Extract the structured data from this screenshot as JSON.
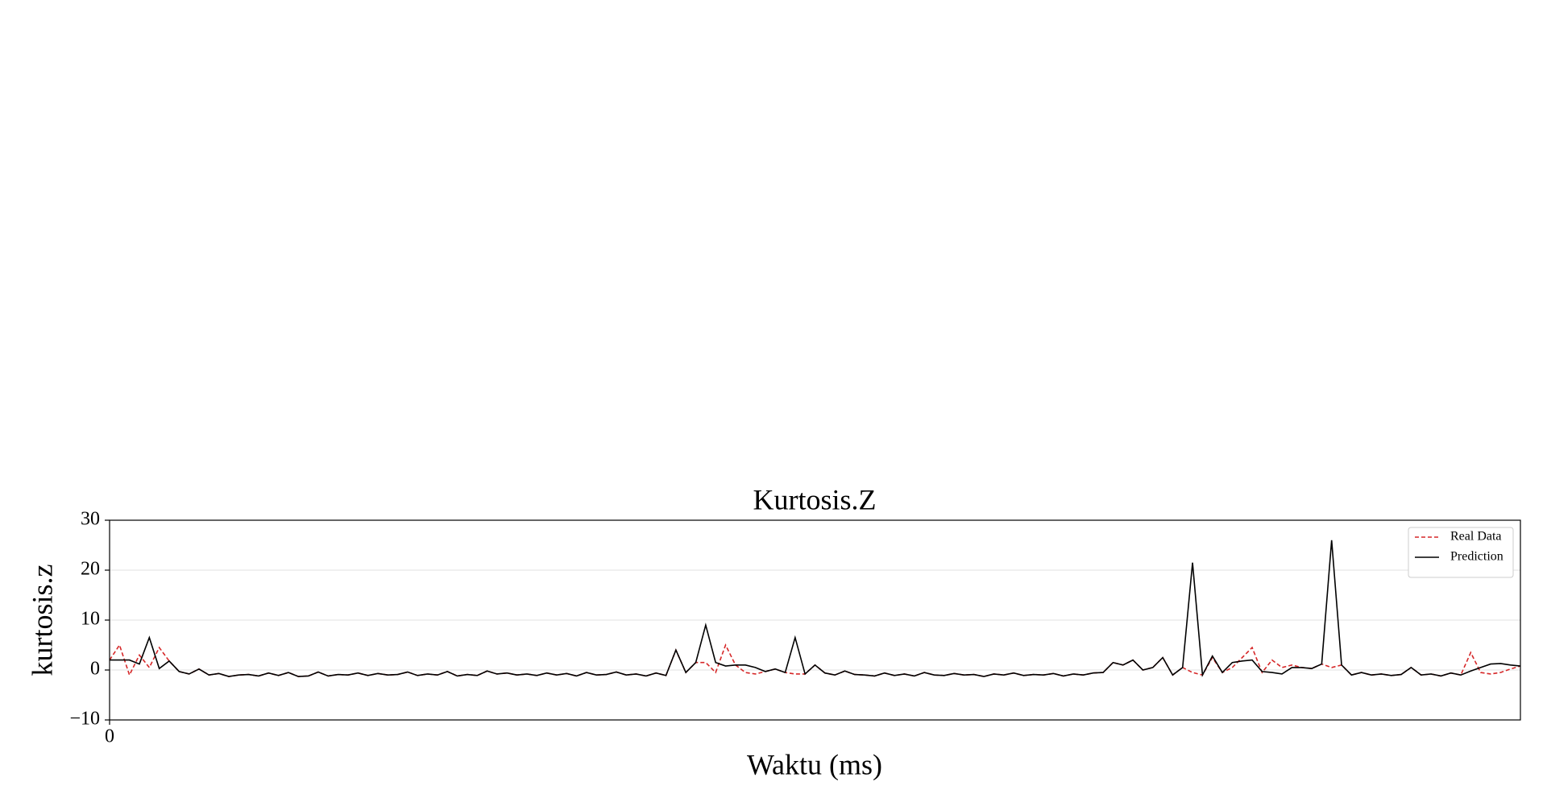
{
  "chart_data": {
    "type": "line",
    "title": "Kurtosis.Z",
    "xlabel": "Waktu (ms)",
    "ylabel": "kurtosis.z",
    "xlim": [
      0,
      142
    ],
    "xticks": [
      0
    ],
    "ylim": [
      -10,
      30
    ],
    "yticks": [
      {
        "value": -10,
        "label": "−10"
      },
      0,
      10,
      20,
      30
    ],
    "grid": true,
    "legend": "upper right",
    "series": [
      {
        "name": "Real Data",
        "color": "#d62728",
        "dashed": true,
        "values": [
          2,
          5,
          -1,
          3,
          0.5,
          4.5,
          1.8,
          -0.3,
          -0.8,
          0.2,
          -1,
          -0.7,
          -1.3,
          -1,
          -0.9,
          -1.2,
          -0.6,
          -1.1,
          -0.5,
          -1.3,
          -1.2,
          -0.4,
          -1.2,
          -0.9,
          -1,
          -0.6,
          -1.1,
          -0.7,
          -1,
          -0.9,
          -0.4,
          -1.1,
          -0.8,
          -1,
          -0.3,
          -1.2,
          -0.9,
          -1.1,
          -0.2,
          -0.8,
          -0.6,
          -1,
          -0.8,
          -1.1,
          -0.6,
          -1,
          -0.7,
          -1.2,
          -0.5,
          -1,
          -0.9,
          -0.4,
          -1,
          -0.8,
          -1.2,
          -0.6,
          -1.1,
          4,
          -0.5,
          1.5,
          1.5,
          -0.5,
          5,
          1,
          -0.5,
          -0.8,
          -0.3,
          0.2,
          -0.5,
          -0.8,
          -0.8,
          1,
          -0.6,
          -1,
          -0.2,
          -0.9,
          -1,
          -1.2,
          -0.6,
          -1.1,
          -0.8,
          -1.2,
          -0.5,
          -1,
          -1.1,
          -0.7,
          -1,
          -0.9,
          -1.3,
          -0.8,
          -1,
          -0.6,
          -1.1,
          -0.9,
          -1,
          -0.7,
          -1.2,
          -0.8,
          -1,
          -0.6,
          -0.5,
          1.5,
          1,
          2,
          0,
          0.5,
          2.5,
          -1,
          0.5,
          -0.5,
          -1,
          2.5,
          -0.5,
          0.5,
          2.5,
          4.5,
          -0.5,
          2,
          0.5,
          1,
          0.5,
          0.3,
          1.2,
          0.5,
          1,
          -1,
          -0.5,
          -1,
          -0.8,
          -1.1,
          -0.9,
          0.5,
          -1,
          -0.8,
          -1.2,
          -0.6,
          -1,
          3.5,
          -0.5,
          -0.8,
          -0.5,
          0.2,
          0.8
        ]
      },
      {
        "name": "Prediction",
        "color": "#000000",
        "dashed": false,
        "values": [
          2,
          2,
          2,
          1.2,
          6.5,
          0.3,
          1.8,
          -0.3,
          -0.8,
          0.2,
          -1,
          -0.7,
          -1.3,
          -1,
          -0.9,
          -1.2,
          -0.6,
          -1.1,
          -0.5,
          -1.3,
          -1.2,
          -0.4,
          -1.2,
          -0.9,
          -1,
          -0.6,
          -1.1,
          -0.7,
          -1,
          -0.9,
          -0.4,
          -1.1,
          -0.8,
          -1,
          -0.3,
          -1.2,
          -0.9,
          -1.1,
          -0.2,
          -0.8,
          -0.6,
          -1,
          -0.8,
          -1.1,
          -0.6,
          -1,
          -0.7,
          -1.2,
          -0.5,
          -1,
          -0.9,
          -0.4,
          -1,
          -0.8,
          -1.2,
          -0.6,
          -1.1,
          4,
          -0.5,
          1.5,
          9,
          1.5,
          0.8,
          1,
          1,
          0.5,
          -0.3,
          0.2,
          -0.5,
          6.5,
          -0.8,
          1,
          -0.6,
          -1,
          -0.2,
          -0.9,
          -1,
          -1.2,
          -0.6,
          -1.1,
          -0.8,
          -1.2,
          -0.5,
          -1,
          -1.1,
          -0.7,
          -1,
          -0.9,
          -1.3,
          -0.8,
          -1,
          -0.6,
          -1.1,
          -0.9,
          -1,
          -0.7,
          -1.2,
          -0.8,
          -1,
          -0.6,
          -0.5,
          1.5,
          1,
          2,
          0,
          0.5,
          2.5,
          -1,
          0.5,
          21.5,
          -1,
          2.8,
          -0.5,
          1.5,
          1.8,
          2,
          -0.3,
          -0.5,
          -0.8,
          0.5,
          0.5,
          0.3,
          1.2,
          26,
          1,
          -1,
          -0.5,
          -1,
          -0.8,
          -1.1,
          -0.9,
          0.5,
          -1,
          -0.8,
          -1.2,
          -0.6,
          -1,
          -0.2,
          0.5,
          1.2,
          1.3,
          1,
          0.8
        ]
      }
    ]
  }
}
